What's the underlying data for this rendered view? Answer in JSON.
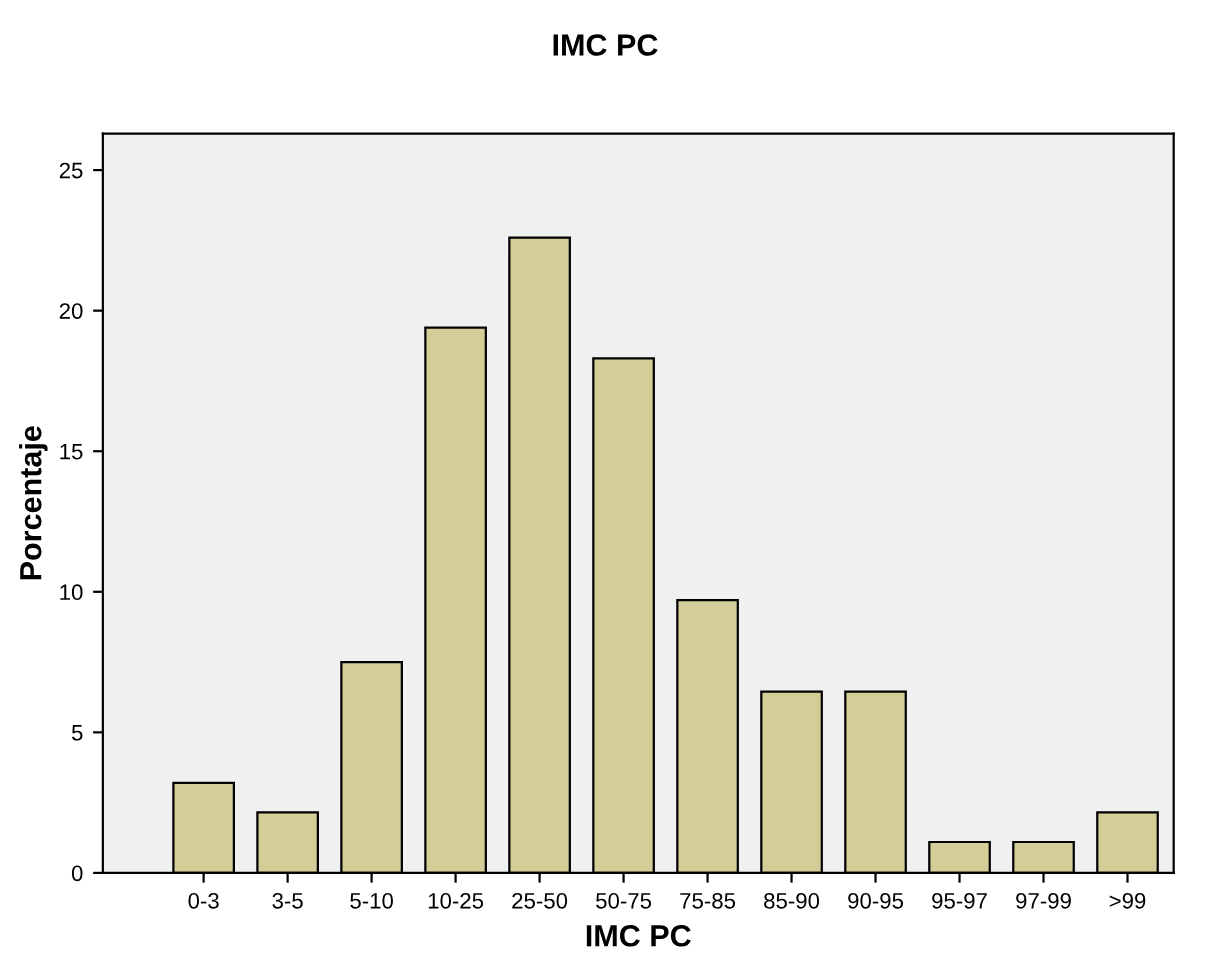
{
  "chart_data": {
    "type": "bar",
    "title": "IMC PC",
    "xlabel": "IMC PC",
    "ylabel": "Porcentaje",
    "categories": [
      "0-3",
      "3-5",
      "5-10",
      "10-25",
      "25-50",
      "50-75",
      "75-85",
      "85-90",
      "90-95",
      "95-97",
      "97-99",
      ">99"
    ],
    "values": [
      3.2,
      2.15,
      7.5,
      19.4,
      22.6,
      18.3,
      9.7,
      6.45,
      6.45,
      1.1,
      1.1,
      2.15
    ],
    "color": "#d3ce97",
    "ylim": [
      0,
      26.3
    ],
    "yticks": [
      0,
      5,
      10,
      15,
      20,
      25
    ],
    "grid": false
  }
}
